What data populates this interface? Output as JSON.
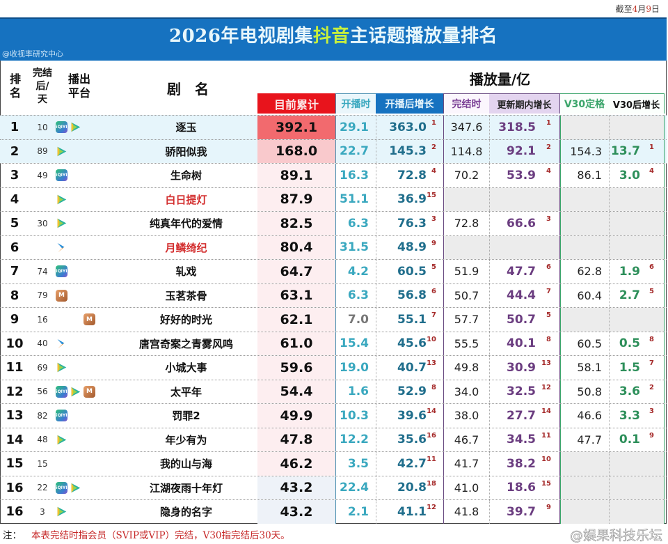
{
  "header": {
    "date_label_prefix": "截至",
    "date_month": "4",
    "date_month_unit": "月",
    "date_day": "9",
    "date_day_unit": "日",
    "title_part1": "2026年电视剧集",
    "title_highlight": "抖音",
    "title_part2": "主话题播放量排名",
    "source": "@收视率研究中心"
  },
  "columns": {
    "rank": "排名",
    "days_after_end": "完结后/天",
    "platform": "播出平台",
    "name": "剧　名",
    "units_label": "播放量/亿",
    "total": "目前累计",
    "at_start": "开播时",
    "growth_since_start": "开播后增长",
    "at_end": "完结时",
    "growth_during_update": "更新期内增长",
    "v30_final": "V30定格",
    "growth_after_v30": "V30后增长"
  },
  "rows": [
    {
      "rank": "1",
      "days": "10",
      "platforms": [
        "iqiyi-icon",
        "tencent-video-icon"
      ],
      "name": "逐玉",
      "name_red": false,
      "total": "392.1",
      "at_start": "29.1",
      "growth_start": "363.0",
      "growth_start_rank": "1",
      "at_end": "347.6",
      "growth_update": "318.5",
      "growth_update_rank": "1",
      "v30": "",
      "v30_growth": "",
      "v30_growth_rank": ""
    },
    {
      "rank": "2",
      "days": "89",
      "platforms": [
        "tencent-video-icon"
      ],
      "name": "骄阳似我",
      "name_red": false,
      "total": "168.0",
      "at_start": "22.7",
      "growth_start": "145.3",
      "growth_start_rank": "2",
      "at_end": "114.8",
      "growth_update": "92.1",
      "growth_update_rank": "2",
      "v30": "154.3",
      "v30_growth": "13.7",
      "v30_growth_rank": "1"
    },
    {
      "rank": "3",
      "days": "49",
      "platforms": [
        "iqiyi-icon"
      ],
      "name": "生命树",
      "name_red": false,
      "total": "89.1",
      "at_start": "16.3",
      "growth_start": "72.8",
      "growth_start_rank": "4",
      "at_end": "70.2",
      "growth_update": "53.9",
      "growth_update_rank": "4",
      "v30": "86.1",
      "v30_growth": "3.0",
      "v30_growth_rank": "4"
    },
    {
      "rank": "4",
      "days": "",
      "platforms": [
        "tencent-video-icon"
      ],
      "name": "白日提灯",
      "name_red": true,
      "total": "87.9",
      "at_start": "51.1",
      "growth_start": "36.9",
      "growth_start_rank": "15",
      "at_end": "",
      "growth_update": "",
      "growth_update_rank": "",
      "v30": "",
      "v30_growth": "",
      "v30_growth_rank": ""
    },
    {
      "rank": "5",
      "days": "30",
      "platforms": [
        "tencent-video-icon"
      ],
      "name": "纯真年代的爱情",
      "name_red": false,
      "total": "82.5",
      "at_start": "6.3",
      "growth_start": "76.3",
      "growth_start_rank": "3",
      "at_end": "72.8",
      "growth_update": "66.6",
      "growth_update_rank": "3",
      "v30": "",
      "v30_growth": "",
      "v30_growth_rank": ""
    },
    {
      "rank": "6",
      "days": "",
      "platforms": [
        "youku-icon"
      ],
      "name": "月鳞绮纪",
      "name_red": true,
      "total": "80.4",
      "at_start": "31.5",
      "growth_start": "48.9",
      "growth_start_rank": "9",
      "at_end": "",
      "growth_update": "",
      "growth_update_rank": "",
      "v30": "",
      "v30_growth": "",
      "v30_growth_rank": ""
    },
    {
      "rank": "7",
      "days": "74",
      "platforms": [
        "iqiyi-icon"
      ],
      "name": "轧戏",
      "name_red": false,
      "total": "64.7",
      "at_start": "4.2",
      "growth_start": "60.5",
      "growth_start_rank": "5",
      "at_end": "51.9",
      "growth_update": "47.7",
      "growth_update_rank": "6",
      "v30": "62.8",
      "v30_growth": "1.9",
      "v30_growth_rank": "6"
    },
    {
      "rank": "8",
      "days": "79",
      "platforms": [
        "mango-tv-icon"
      ],
      "name": "玉茗茶骨",
      "name_red": false,
      "total": "63.1",
      "at_start": "6.3",
      "growth_start": "56.8",
      "growth_start_rank": "6",
      "at_end": "50.7",
      "growth_update": "44.4",
      "growth_update_rank": "7",
      "v30": "60.4",
      "v30_growth": "2.7",
      "v30_growth_rank": "5"
    },
    {
      "rank": "9",
      "days": "16",
      "platforms": [
        "spacer",
        "spacer",
        "mango-tv-icon"
      ],
      "name": "好好的时光",
      "name_red": false,
      "total": "62.1",
      "at_start": "7.0",
      "at_start_grey": true,
      "growth_start": "55.1",
      "growth_start_rank": "7",
      "at_end": "57.7",
      "growth_update": "50.7",
      "growth_update_rank": "5",
      "v30": "",
      "v30_growth": "",
      "v30_growth_rank": ""
    },
    {
      "rank": "10",
      "days": "40",
      "platforms": [
        "youku-icon"
      ],
      "name": "唐宫奇案之青雾风鸣",
      "name_red": false,
      "total": "61.0",
      "at_start": "15.4",
      "growth_start": "45.6",
      "growth_start_rank": "10",
      "at_end": "55.5",
      "growth_update": "40.1",
      "growth_update_rank": "8",
      "v30": "60.5",
      "v30_growth": "0.5",
      "v30_growth_rank": "8"
    },
    {
      "rank": "11",
      "days": "69",
      "platforms": [
        "tencent-video-icon"
      ],
      "name": "小城大事",
      "name_red": false,
      "total": "59.6",
      "at_start": "19.0",
      "growth_start": "40.7",
      "growth_start_rank": "13",
      "at_end": "49.8",
      "growth_update": "30.9",
      "growth_update_rank": "13",
      "v30": "58.1",
      "v30_growth": "1.5",
      "v30_growth_rank": "7"
    },
    {
      "rank": "12",
      "days": "56",
      "platforms": [
        "iqiyi-icon",
        "tencent-video-icon",
        "mango-tv-icon"
      ],
      "name": "太平年",
      "name_red": false,
      "total": "54.4",
      "at_start": "1.6",
      "growth_start": "52.9",
      "growth_start_rank": "8",
      "at_end": "34.0",
      "growth_update": "32.5",
      "growth_update_rank": "12",
      "v30": "50.8",
      "v30_growth": "3.6",
      "v30_growth_rank": "2"
    },
    {
      "rank": "13",
      "days": "82",
      "platforms": [
        "iqiyi-icon"
      ],
      "name": "罚罪2",
      "name_red": false,
      "total": "49.9",
      "at_start": "10.3",
      "growth_start": "39.6",
      "growth_start_rank": "14",
      "at_end": "38.0",
      "growth_update": "27.7",
      "growth_update_rank": "14",
      "v30": "46.6",
      "v30_growth": "3.3",
      "v30_growth_rank": "3"
    },
    {
      "rank": "14",
      "days": "48",
      "platforms": [
        "tencent-video-icon"
      ],
      "name": "年少有为",
      "name_red": false,
      "total": "47.8",
      "at_start": "12.2",
      "growth_start": "35.6",
      "growth_start_rank": "16",
      "at_end": "46.7",
      "growth_update": "34.5",
      "growth_update_rank": "11",
      "v30": "47.7",
      "v30_growth": "0.1",
      "v30_growth_rank": "9"
    },
    {
      "rank": "15",
      "days": "15",
      "platforms": [],
      "name": "我的山与海",
      "name_red": false,
      "total": "46.2",
      "at_start": "3.5",
      "growth_start": "42.7",
      "growth_start_rank": "11",
      "at_end": "41.7",
      "growth_update": "38.2",
      "growth_update_rank": "10",
      "v30": "",
      "v30_growth": "",
      "v30_growth_rank": ""
    },
    {
      "rank": "16",
      "days": "22",
      "platforms": [
        "iqiyi-icon",
        "tencent-video-icon"
      ],
      "name": "江湖夜雨十年灯",
      "name_red": false,
      "total": "43.2",
      "at_start": "22.4",
      "growth_start": "20.8",
      "growth_start_rank": "18",
      "at_end": "41.0",
      "growth_update": "18.6",
      "growth_update_rank": "15",
      "v30": "",
      "v30_growth": "",
      "v30_growth_rank": ""
    },
    {
      "rank": "16",
      "days": "3",
      "platforms": [
        "tencent-video-icon"
      ],
      "name": "隐身的名字",
      "name_red": false,
      "total": "43.2",
      "at_start": "2.1",
      "growth_start": "41.1",
      "growth_start_rank": "12",
      "at_end": "41.8",
      "growth_update": "39.7",
      "growth_update_rank": "9",
      "v30": "",
      "v30_growth": "",
      "v30_growth_rank": ""
    }
  ],
  "footer": {
    "note_label": "注：",
    "note_text": "本表完结时指会员（SVIP或VIP）完结，V30指完结后30天。",
    "watermark": "@娱果科技乐坛"
  },
  "colors": {
    "title_bar": "#1672c0",
    "title_highlight": "#c8f03c",
    "total_header": "#e8141c",
    "start_growth_header": "#1672c0",
    "end_growth_header": "#e3d4ef",
    "v30_color": "#2d8f5a",
    "rank_superscript": "#a52a2a",
    "red_name": "#d32f2f"
  }
}
